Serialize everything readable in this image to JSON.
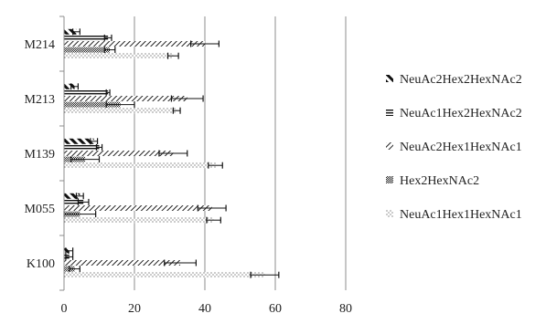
{
  "chart_data": {
    "type": "bar",
    "orientation": "horizontal",
    "categories": [
      "K100",
      "M055",
      "M139",
      "M213",
      "M214"
    ],
    "xlim": [
      0,
      80
    ],
    "x_ticks": [
      "0",
      "20",
      "40",
      "60",
      "80"
    ],
    "grid": "vertical major gridlines",
    "legend_position": "right",
    "error_bars": true,
    "series": [
      {
        "name": "NeuAc2Hex2HexNAc2",
        "pattern": "wide-diagonal",
        "values": [
          1.5,
          4.5,
          8.5,
          3,
          3.5
        ],
        "errors": [
          1,
          1,
          1,
          1,
          1
        ]
      },
      {
        "name": "NeuAc1Hex2HexNAc2",
        "pattern": "horizontal-lines",
        "values": [
          1.5,
          5.5,
          10,
          12.5,
          12.5
        ],
        "errors": [
          1,
          1.5,
          0.8,
          0.5,
          1
        ]
      },
      {
        "name": "NeuAc2Hex1HexNAc1",
        "pattern": "narrow-diagonal",
        "values": [
          33,
          42,
          31,
          35,
          40
        ],
        "errors": [
          4.5,
          4,
          4,
          4.5,
          4
        ]
      },
      {
        "name": "Hex2HexNAc2",
        "pattern": "checker",
        "values": [
          3,
          4.5,
          6,
          16,
          13
        ],
        "errors": [
          1.5,
          4.5,
          4,
          4,
          1.5
        ]
      },
      {
        "name": "NeuAc1Hex1HexNAc1",
        "pattern": "dots",
        "values": [
          57,
          42.5,
          43,
          32,
          31
        ],
        "errors": [
          4,
          2,
          2,
          1,
          1.5
        ]
      }
    ]
  }
}
